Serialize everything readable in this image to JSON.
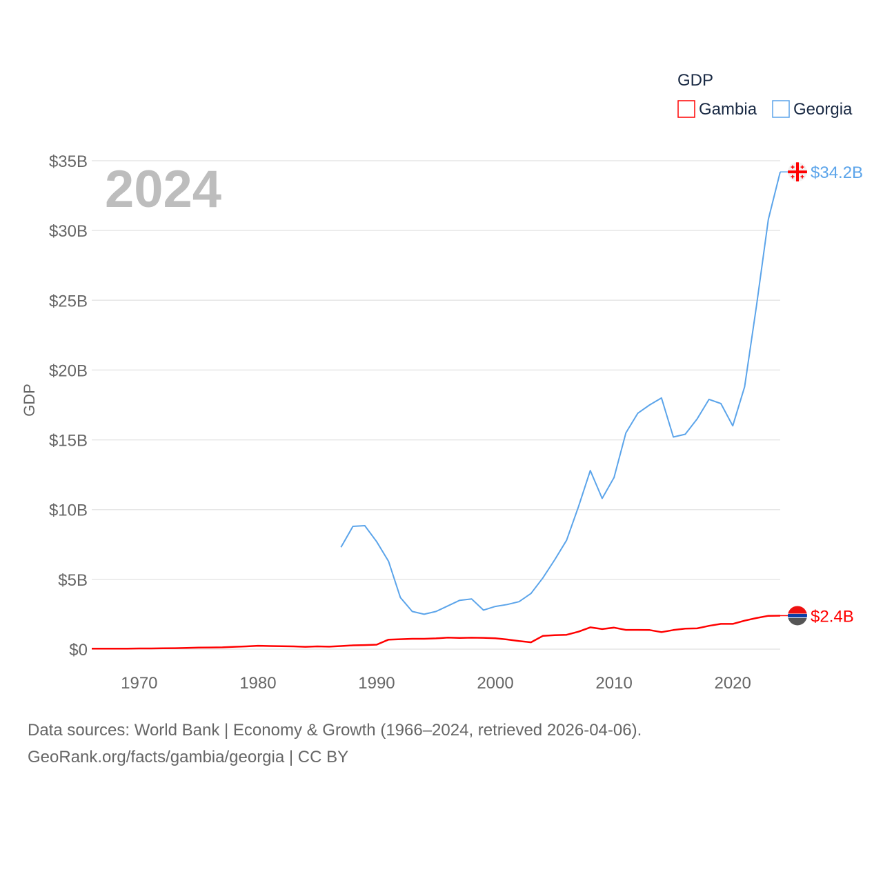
{
  "chart_data": {
    "type": "line",
    "title": "GDP",
    "year_label": "2024",
    "ylabel": "GDP",
    "xlabel": "",
    "xlim": [
      1966,
      2024
    ],
    "ylim": [
      0,
      35
    ],
    "x_ticks": [
      1970,
      1980,
      1990,
      2000,
      2010,
      2020
    ],
    "y_ticks": [
      {
        "value": 0,
        "label": "$0"
      },
      {
        "value": 5,
        "label": "$5B"
      },
      {
        "value": 10,
        "label": "$10B"
      },
      {
        "value": 15,
        "label": "$15B"
      },
      {
        "value": 20,
        "label": "$20B"
      },
      {
        "value": 25,
        "label": "$25B"
      },
      {
        "value": 30,
        "label": "$30B"
      },
      {
        "value": 35,
        "label": "$35B"
      }
    ],
    "grid": true,
    "legend_position": "top-right",
    "units": "billion USD",
    "series": [
      {
        "name": "Gambia",
        "color": "#ff0000",
        "end_label": "$2.4B",
        "flag": "gambia-flag",
        "x": [
          1966,
          1967,
          1968,
          1969,
          1970,
          1971,
          1972,
          1973,
          1974,
          1975,
          1976,
          1977,
          1978,
          1979,
          1980,
          1981,
          1982,
          1983,
          1984,
          1985,
          1986,
          1987,
          1988,
          1989,
          1990,
          1991,
          1992,
          1993,
          1994,
          1995,
          1996,
          1997,
          1998,
          1999,
          2000,
          2001,
          2002,
          2003,
          2004,
          2005,
          2006,
          2007,
          2008,
          2009,
          2010,
          2011,
          2012,
          2013,
          2014,
          2015,
          2016,
          2017,
          2018,
          2019,
          2020,
          2021,
          2022,
          2023,
          2024
        ],
        "values": [
          0.04,
          0.04,
          0.04,
          0.04,
          0.05,
          0.05,
          0.06,
          0.07,
          0.09,
          0.11,
          0.12,
          0.13,
          0.17,
          0.2,
          0.24,
          0.22,
          0.21,
          0.2,
          0.17,
          0.2,
          0.18,
          0.22,
          0.27,
          0.29,
          0.32,
          0.68,
          0.71,
          0.74,
          0.74,
          0.77,
          0.83,
          0.8,
          0.82,
          0.81,
          0.78,
          0.69,
          0.58,
          0.49,
          0.95,
          1.0,
          1.03,
          1.25,
          1.56,
          1.44,
          1.54,
          1.38,
          1.38,
          1.37,
          1.22,
          1.37,
          1.47,
          1.49,
          1.67,
          1.81,
          1.81,
          2.04,
          2.23,
          2.39,
          2.4
        ]
      },
      {
        "name": "Georgia",
        "color": "#5ba4ea",
        "end_label": "$34.2B",
        "flag": "georgia-flag",
        "x": [
          1987,
          1988,
          1989,
          1990,
          1991,
          1992,
          1993,
          1994,
          1995,
          1996,
          1997,
          1998,
          1999,
          2000,
          2001,
          2002,
          2003,
          2004,
          2005,
          2006,
          2007,
          2008,
          2009,
          2010,
          2011,
          2012,
          2013,
          2014,
          2015,
          2016,
          2017,
          2018,
          2019,
          2020,
          2021,
          2022,
          2023,
          2024
        ],
        "values": [
          7.3,
          8.8,
          8.85,
          7.7,
          6.3,
          3.7,
          2.7,
          2.5,
          2.7,
          3.1,
          3.5,
          3.6,
          2.8,
          3.06,
          3.2,
          3.4,
          3.99,
          5.1,
          6.4,
          7.8,
          10.2,
          12.8,
          10.8,
          12.3,
          15.5,
          16.9,
          17.5,
          18.0,
          15.2,
          15.4,
          16.5,
          17.9,
          17.6,
          16.0,
          18.8,
          24.6,
          30.8,
          34.2
        ]
      }
    ]
  },
  "footer": {
    "line1": "Data sources: World Bank | Economy & Growth (1966–2024, retrieved 2026-04-06).",
    "line2": "GeoRank.org/facts/gambia/georgia | CC BY"
  }
}
